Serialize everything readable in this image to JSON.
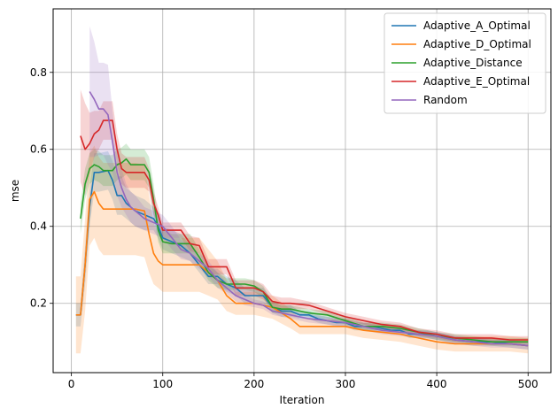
{
  "chart_data": {
    "type": "line",
    "title": "",
    "xlabel": "Iteration",
    "ylabel": "mse",
    "xlim": [
      -20,
      525
    ],
    "ylim": [
      0.02,
      0.965
    ],
    "xticks": [
      0,
      100,
      200,
      300,
      400,
      500
    ],
    "yticks": [
      0.2,
      0.4,
      0.6,
      0.8
    ],
    "grid": true,
    "legend_position": "top-right",
    "series": [
      {
        "name": "Adaptive_A_Optimal",
        "color": "#1f77b4",
        "x": [
          5,
          10,
          15,
          20,
          25,
          30,
          40,
          45,
          50,
          55,
          60,
          70,
          80,
          90,
          95,
          100,
          110,
          120,
          130,
          140,
          150,
          160,
          170,
          180,
          190,
          200,
          210,
          220,
          230,
          240,
          250,
          260,
          270,
          280,
          290,
          300,
          310,
          320,
          330,
          340,
          350,
          360,
          370,
          380,
          390,
          400,
          420,
          440,
          460,
          480,
          500
        ],
        "y": [
          0.17,
          0.17,
          0.3,
          0.45,
          0.54,
          0.54,
          0.545,
          0.52,
          0.48,
          0.48,
          0.46,
          0.44,
          0.43,
          0.42,
          0.4,
          0.37,
          0.36,
          0.35,
          0.33,
          0.3,
          0.27,
          0.27,
          0.25,
          0.24,
          0.22,
          0.22,
          0.22,
          0.19,
          0.18,
          0.18,
          0.17,
          0.17,
          0.16,
          0.155,
          0.15,
          0.15,
          0.14,
          0.14,
          0.14,
          0.135,
          0.13,
          0.13,
          0.12,
          0.12,
          0.12,
          0.115,
          0.105,
          0.1,
          0.1,
          0.095,
          0.09
        ],
        "band": [
          0.03,
          0.03,
          0.05,
          0.05,
          0.05,
          0.05,
          0.05,
          0.05,
          0.05,
          0.05,
          0.04,
          0.04,
          0.04,
          0.03,
          0.03,
          0.03,
          0.03,
          0.03,
          0.02,
          0.02,
          0.02,
          0.02,
          0.02,
          0.02,
          0.02,
          0.02,
          0.02,
          0.015,
          0.015,
          0.015,
          0.01,
          0.01,
          0.01,
          0.01,
          0.01,
          0.01,
          0.01,
          0.01,
          0.01,
          0.01,
          0.01,
          0.01,
          0.01,
          0.01,
          0.01,
          0.01,
          0.01,
          0.01,
          0.01,
          0.01,
          0.01
        ]
      },
      {
        "name": "Adaptive_D_Optimal",
        "color": "#ff7f0e",
        "x": [
          5,
          10,
          15,
          20,
          25,
          30,
          35,
          40,
          50,
          60,
          70,
          80,
          85,
          90,
          95,
          100,
          110,
          120,
          130,
          140,
          150,
          160,
          170,
          180,
          190,
          200,
          220,
          240,
          250,
          260,
          280,
          300,
          320,
          340,
          360,
          380,
          400,
          420,
          440,
          460,
          480,
          500
        ],
        "y": [
          0.17,
          0.17,
          0.3,
          0.47,
          0.49,
          0.46,
          0.445,
          0.445,
          0.445,
          0.445,
          0.445,
          0.44,
          0.38,
          0.33,
          0.31,
          0.3,
          0.3,
          0.3,
          0.3,
          0.3,
          0.28,
          0.26,
          0.22,
          0.2,
          0.2,
          0.2,
          0.19,
          0.16,
          0.14,
          0.14,
          0.14,
          0.14,
          0.13,
          0.125,
          0.12,
          0.11,
          0.1,
          0.095,
          0.095,
          0.095,
          0.095,
          0.09
        ],
        "band": [
          0.1,
          0.1,
          0.12,
          0.12,
          0.12,
          0.12,
          0.12,
          0.12,
          0.12,
          0.12,
          0.12,
          0.12,
          0.1,
          0.08,
          0.07,
          0.07,
          0.07,
          0.07,
          0.07,
          0.07,
          0.06,
          0.05,
          0.04,
          0.03,
          0.03,
          0.03,
          0.03,
          0.025,
          0.02,
          0.02,
          0.02,
          0.02,
          0.02,
          0.02,
          0.02,
          0.02,
          0.02,
          0.02,
          0.02,
          0.02,
          0.02,
          0.02
        ]
      },
      {
        "name": "Adaptive_Distance",
        "color": "#2ca02c",
        "x": [
          10,
          15,
          20,
          25,
          30,
          35,
          40,
          45,
          50,
          55,
          60,
          65,
          70,
          80,
          85,
          90,
          95,
          100,
          110,
          120,
          130,
          140,
          150,
          160,
          170,
          180,
          190,
          200,
          210,
          220,
          230,
          240,
          260,
          280,
          300,
          320,
          340,
          360,
          380,
          400,
          420,
          440,
          460,
          480,
          500
        ],
        "y": [
          0.42,
          0.51,
          0.55,
          0.56,
          0.555,
          0.545,
          0.545,
          0.545,
          0.56,
          0.565,
          0.575,
          0.56,
          0.56,
          0.56,
          0.54,
          0.47,
          0.39,
          0.36,
          0.355,
          0.355,
          0.355,
          0.32,
          0.28,
          0.26,
          0.25,
          0.25,
          0.25,
          0.245,
          0.23,
          0.19,
          0.185,
          0.185,
          0.175,
          0.17,
          0.155,
          0.14,
          0.14,
          0.135,
          0.125,
          0.115,
          0.11,
          0.105,
          0.1,
          0.1,
          0.1
        ],
        "band": [
          0.04,
          0.04,
          0.04,
          0.04,
          0.04,
          0.04,
          0.04,
          0.04,
          0.04,
          0.04,
          0.04,
          0.04,
          0.04,
          0.04,
          0.04,
          0.04,
          0.03,
          0.03,
          0.025,
          0.025,
          0.025,
          0.02,
          0.02,
          0.02,
          0.015,
          0.015,
          0.015,
          0.015,
          0.015,
          0.015,
          0.01,
          0.01,
          0.01,
          0.01,
          0.01,
          0.01,
          0.01,
          0.01,
          0.01,
          0.01,
          0.01,
          0.01,
          0.01,
          0.01,
          0.01
        ]
      },
      {
        "name": "Adaptive_E_Optimal",
        "color": "#d62728",
        "x": [
          10,
          15,
          20,
          25,
          30,
          35,
          40,
          45,
          50,
          55,
          60,
          70,
          80,
          85,
          90,
          95,
          100,
          110,
          120,
          130,
          140,
          150,
          160,
          170,
          180,
          190,
          200,
          210,
          220,
          230,
          240,
          260,
          280,
          300,
          320,
          340,
          360,
          380,
          400,
          420,
          440,
          460,
          480,
          500
        ],
        "y": [
          0.635,
          0.6,
          0.615,
          0.64,
          0.65,
          0.675,
          0.675,
          0.675,
          0.6,
          0.55,
          0.54,
          0.54,
          0.54,
          0.52,
          0.46,
          0.43,
          0.39,
          0.39,
          0.39,
          0.355,
          0.35,
          0.295,
          0.295,
          0.295,
          0.24,
          0.24,
          0.24,
          0.23,
          0.205,
          0.2,
          0.2,
          0.195,
          0.18,
          0.165,
          0.155,
          0.145,
          0.14,
          0.125,
          0.12,
          0.11,
          0.11,
          0.11,
          0.105,
          0.105
        ],
        "band": [
          0.12,
          0.12,
          0.08,
          0.06,
          0.05,
          0.05,
          0.05,
          0.05,
          0.04,
          0.04,
          0.04,
          0.04,
          0.04,
          0.03,
          0.03,
          0.02,
          0.02,
          0.02,
          0.02,
          0.02,
          0.02,
          0.02,
          0.02,
          0.02,
          0.02,
          0.02,
          0.02,
          0.02,
          0.015,
          0.015,
          0.015,
          0.01,
          0.01,
          0.01,
          0.01,
          0.01,
          0.01,
          0.01,
          0.01,
          0.01,
          0.01,
          0.01,
          0.01,
          0.01
        ]
      },
      {
        "name": "Random",
        "color": "#9467bd",
        "x": [
          20,
          25,
          30,
          35,
          40,
          45,
          50,
          55,
          60,
          65,
          70,
          80,
          90,
          100,
          110,
          120,
          130,
          140,
          150,
          160,
          170,
          180,
          190,
          200,
          210,
          220,
          240,
          260,
          280,
          300,
          320,
          340,
          360,
          380,
          400,
          420,
          440,
          460,
          480,
          500
        ],
        "y": [
          0.75,
          0.73,
          0.705,
          0.705,
          0.69,
          0.62,
          0.54,
          0.5,
          0.47,
          0.45,
          0.44,
          0.42,
          0.41,
          0.4,
          0.37,
          0.34,
          0.33,
          0.31,
          0.29,
          0.26,
          0.24,
          0.22,
          0.21,
          0.2,
          0.195,
          0.18,
          0.17,
          0.16,
          0.155,
          0.15,
          0.14,
          0.13,
          0.125,
          0.12,
          0.115,
          0.105,
          0.1,
          0.095,
          0.095,
          0.09
        ],
        "band": [
          0.17,
          0.15,
          0.12,
          0.12,
          0.13,
          0.08,
          0.06,
          0.05,
          0.04,
          0.04,
          0.04,
          0.03,
          0.03,
          0.03,
          0.03,
          0.025,
          0.02,
          0.02,
          0.02,
          0.02,
          0.015,
          0.015,
          0.015,
          0.01,
          0.01,
          0.01,
          0.01,
          0.01,
          0.01,
          0.01,
          0.01,
          0.01,
          0.01,
          0.01,
          0.01,
          0.01,
          0.01,
          0.01,
          0.01,
          0.01
        ]
      }
    ]
  }
}
